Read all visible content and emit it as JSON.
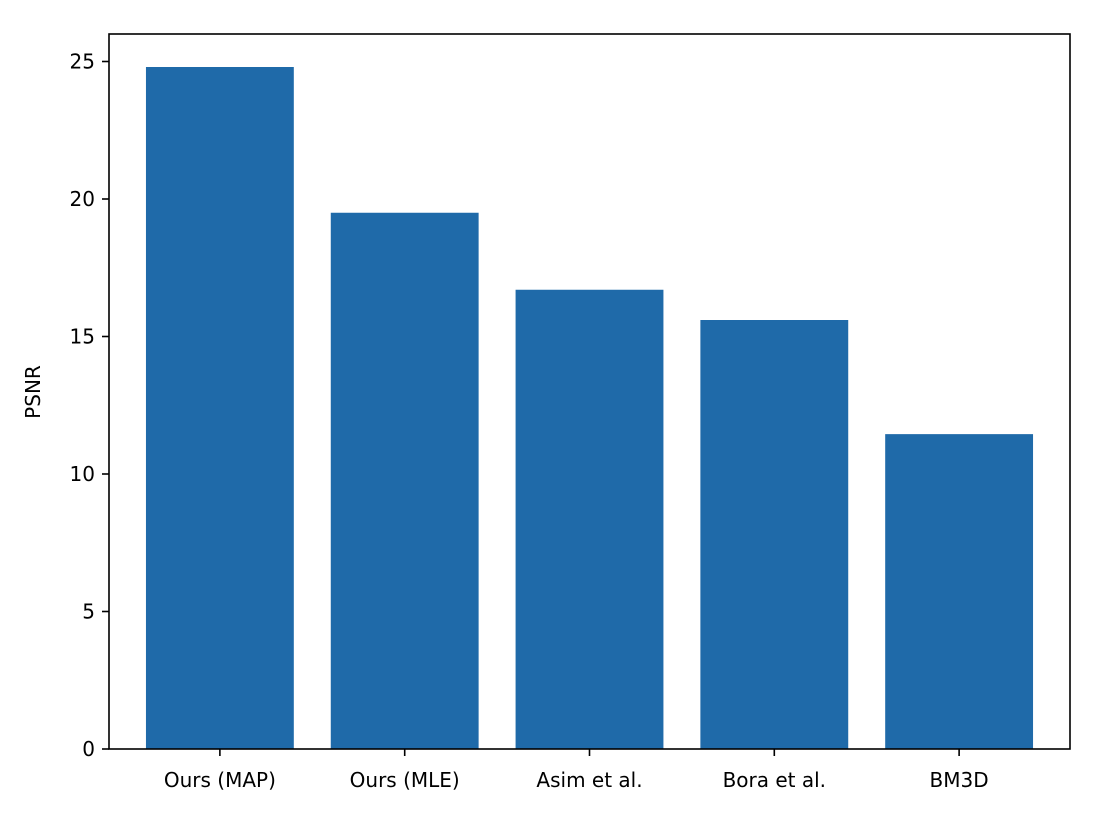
{
  "chart_data": {
    "type": "bar",
    "title": "",
    "xlabel": "",
    "ylabel": "PSNR",
    "categories": [
      "Ours (MAP)",
      "Ours (MLE)",
      "Asim et al.",
      "Bora et al.",
      "BM3D"
    ],
    "values": [
      24.8,
      19.5,
      16.7,
      15.6,
      11.45
    ],
    "ylim": [
      0,
      26
    ],
    "yticks": [
      0,
      5,
      10,
      15,
      20,
      25
    ],
    "grid": false,
    "legend": "none",
    "bar_color": "#1f6aa9"
  }
}
